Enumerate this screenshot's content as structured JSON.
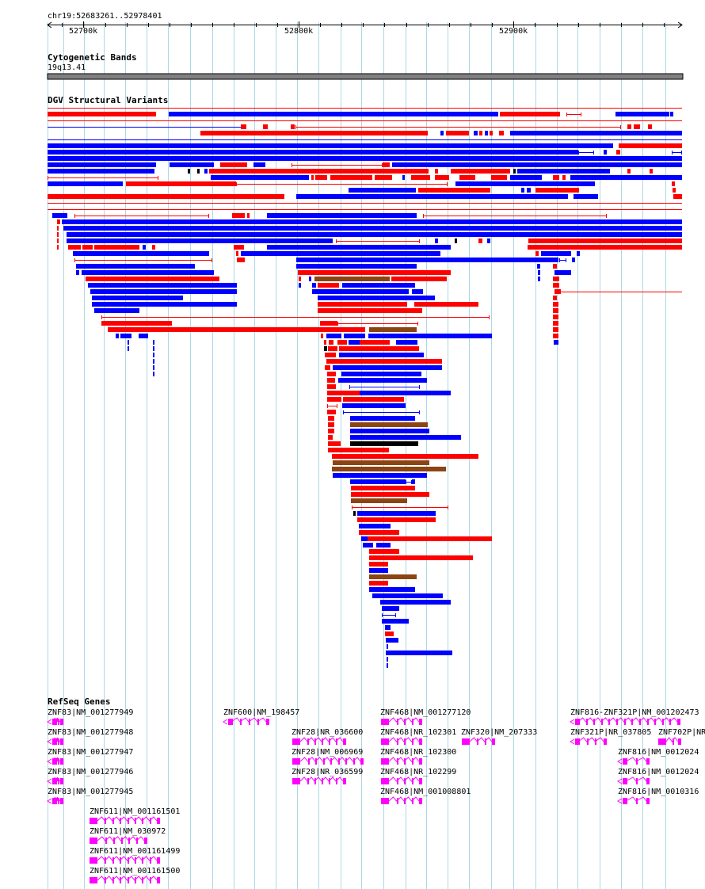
{
  "location": "chr19:52683261..52978401",
  "ruler": {
    "ticks": [
      {
        "label": "52700k",
        "pos": 52700000
      },
      {
        "label": "52800k",
        "pos": 52800000
      },
      {
        "label": "52900k",
        "pos": 52900000
      }
    ]
  },
  "tracks": {
    "cytobands": {
      "title": "Cytogenetic Bands",
      "band": "19q13.41"
    },
    "dgv": {
      "title": "DGV Structural Variants"
    },
    "refseq": {
      "title": "RefSeq Genes"
    }
  },
  "colors": {
    "gain": "#ff0000",
    "loss": "#0000ff",
    "gain_loss": "#8b4513",
    "other": "#000000",
    "gene": "#ff00ff",
    "grid": "#add8e6",
    "band": "#808080"
  },
  "genes": [
    "ZNF83|NM_001277949",
    "ZNF83|NM_001277948",
    "ZNF83|NM_001277947",
    "ZNF83|NM_001277946",
    "ZNF83|NM_001277945",
    "ZNF611|NM_001161501",
    "ZNF611|NM_030972",
    "ZNF611|NM_001161499",
    "ZNF611|NM_001161500",
    "ZNF600|NM_198457",
    "ZNF28|NR_036600",
    "ZNF28|NM_006969",
    "ZNF28|NR_036599",
    "ZNF468|NM_001277120",
    "ZNF468|NR_102301",
    "ZNF468|NR_102300",
    "ZNF468|NR_102299",
    "ZNF468|NM_001008801",
    "ZNF320|NM_207333",
    "ZNF816-ZNF321P|NM_001202473",
    "ZNF321P|NR_037805",
    "ZNF702P|NR_",
    "ZNF816|NM_0012024",
    "ZNF816|NM_0012024",
    "ZNF816|NM_0010316"
  ]
}
